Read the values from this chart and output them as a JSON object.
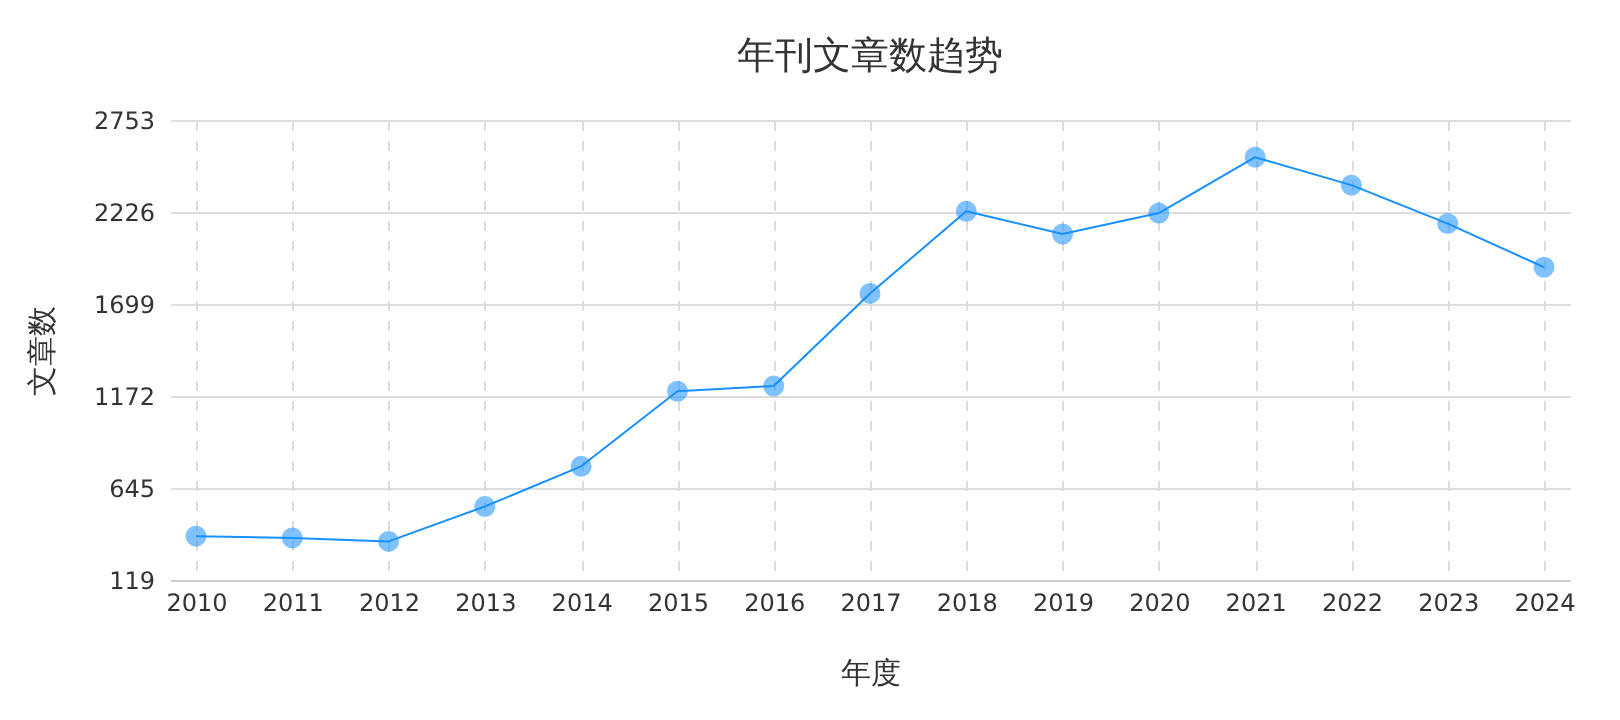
{
  "chart_data": {
    "type": "line",
    "title": "年刊文章数趋势",
    "xlabel": "年度",
    "ylabel": "文章数",
    "categories": [
      "2010",
      "2011",
      "2012",
      "2013",
      "2014",
      "2015",
      "2016",
      "2017",
      "2018",
      "2019",
      "2020",
      "2021",
      "2022",
      "2023",
      "2024"
    ],
    "series": [
      {
        "color": "#1890ff",
        "values": [
          370,
          360,
          340,
          540,
          770,
          1200,
          1230,
          1760,
          2230,
          2100,
          2220,
          2540,
          2380,
          2160,
          1910
        ]
      }
    ],
    "ylim": [
      119,
      2753
    ],
    "yticks": [
      119,
      645,
      1172,
      1699,
      2226,
      2753
    ],
    "grid": true,
    "marker": "circle",
    "line_style": "solid"
  }
}
